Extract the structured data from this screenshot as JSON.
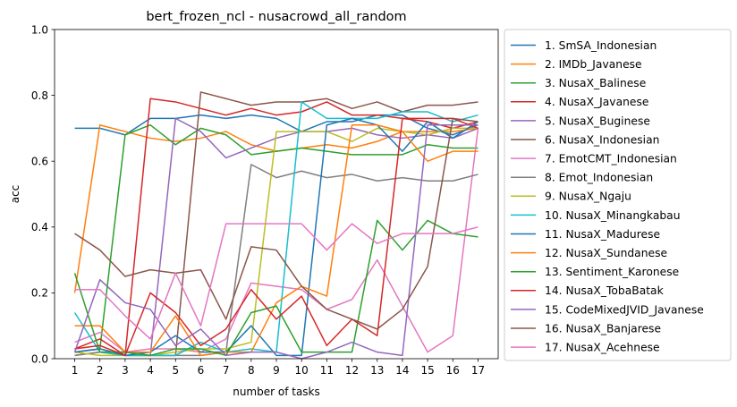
{
  "chart_data": {
    "type": "line",
    "title": "bert_frozen_ncl - nusacrowd_all_random",
    "xlabel": "number of tasks",
    "ylabel": "acc",
    "x": [
      1,
      2,
      3,
      4,
      5,
      6,
      7,
      8,
      9,
      10,
      11,
      12,
      13,
      14,
      15,
      16,
      17
    ],
    "xlim": [
      0.2,
      17.8
    ],
    "ylim": [
      0,
      1
    ],
    "yticks": [
      "0.0",
      "0.2",
      "0.4",
      "0.6",
      "0.8",
      "1.0"
    ],
    "grid": false,
    "legend_position": "outside-right",
    "series": [
      {
        "name": "1. SmSA_Indonesian",
        "color": "#1f77b4",
        "values": [
          0.7,
          0.7,
          0.68,
          0.73,
          0.73,
          0.74,
          0.73,
          0.74,
          0.73,
          0.69,
          0.72,
          0.72,
          0.74,
          0.74,
          0.7,
          0.68,
          0.71
        ]
      },
      {
        "name": "2. IMDb_Javanese",
        "color": "#ff7f0e",
        "values": [
          0.2,
          0.71,
          0.69,
          0.67,
          0.66,
          0.67,
          0.69,
          0.65,
          0.63,
          0.64,
          0.65,
          0.64,
          0.66,
          0.69,
          0.69,
          0.69,
          0.7
        ]
      },
      {
        "name": "3. NusaX_Balinese",
        "color": "#2ca02c",
        "values": [
          0.02,
          0.03,
          0.68,
          0.71,
          0.65,
          0.7,
          0.68,
          0.62,
          0.63,
          0.64,
          0.63,
          0.62,
          0.62,
          0.62,
          0.65,
          0.64,
          0.64
        ]
      },
      {
        "name": "4. NusaX_Javanese",
        "color": "#d62728",
        "values": [
          0.03,
          0.06,
          0.01,
          0.79,
          0.78,
          0.76,
          0.74,
          0.76,
          0.74,
          0.75,
          0.78,
          0.74,
          0.74,
          0.73,
          0.72,
          0.7,
          0.72
        ]
      },
      {
        "name": "5. NusaX_Buginese",
        "color": "#9467bd",
        "values": [
          0.02,
          0.03,
          0.01,
          0.01,
          0.73,
          0.69,
          0.61,
          0.64,
          0.67,
          0.69,
          0.69,
          0.7,
          0.68,
          0.67,
          0.68,
          0.67,
          0.7
        ]
      },
      {
        "name": "6. NusaX_Indonesian",
        "color": "#8c564b",
        "values": [
          0.01,
          0.02,
          0.02,
          0.01,
          0.01,
          0.81,
          0.79,
          0.77,
          0.78,
          0.78,
          0.79,
          0.76,
          0.78,
          0.75,
          0.77,
          0.77,
          0.78
        ]
      },
      {
        "name": "7. EmotCMT_Indonesian",
        "color": "#e377c2",
        "values": [
          0.05,
          0.08,
          0.02,
          0.03,
          0.03,
          0.02,
          0.06,
          0.23,
          0.22,
          0.21,
          0.15,
          0.18,
          0.3,
          0.16,
          0.02,
          0.07,
          0.7
        ]
      },
      {
        "name": "8. Emot_Indonesian",
        "color": "#7f7f7f",
        "values": [
          0.01,
          0.02,
          0.01,
          0.01,
          0.01,
          0.01,
          0.02,
          0.59,
          0.55,
          0.57,
          0.55,
          0.56,
          0.54,
          0.55,
          0.54,
          0.54,
          0.56
        ]
      },
      {
        "name": "9. NusaX_Ngaju",
        "color": "#bcbd22",
        "values": [
          0.02,
          0.01,
          0.01,
          0.01,
          0.02,
          0.03,
          0.03,
          0.05,
          0.69,
          0.69,
          0.69,
          0.66,
          0.7,
          0.69,
          0.68,
          0.7,
          0.7
        ]
      },
      {
        "name": "10. NusaX_Minangkabau",
        "color": "#17becf",
        "values": [
          0.14,
          0.02,
          0.01,
          0.01,
          0.01,
          0.05,
          0.02,
          0.03,
          0.02,
          0.78,
          0.73,
          0.73,
          0.73,
          0.75,
          0.75,
          0.72,
          0.74
        ]
      },
      {
        "name": "11. NusaX_Madurese",
        "color": "#1f77b4",
        "values": [
          0.02,
          0.03,
          0.01,
          0.02,
          0.07,
          0.02,
          0.02,
          0.1,
          0.01,
          0.01,
          0.71,
          0.73,
          0.71,
          0.63,
          0.72,
          0.67,
          0.72
        ]
      },
      {
        "name": "12. NusaX_Sundanese",
        "color": "#ff7f0e",
        "values": [
          0.1,
          0.1,
          0.02,
          0.02,
          0.13,
          0.01,
          0.02,
          0.02,
          0.17,
          0.22,
          0.19,
          0.71,
          0.71,
          0.69,
          0.6,
          0.63,
          0.63
        ]
      },
      {
        "name": "13. Sentiment_Karonese",
        "color": "#2ca02c",
        "values": [
          0.26,
          0.02,
          0.02,
          0.01,
          0.03,
          0.03,
          0.01,
          0.14,
          0.16,
          0.02,
          0.02,
          0.02,
          0.42,
          0.33,
          0.42,
          0.38,
          0.37
        ]
      },
      {
        "name": "14. NusaX_TobaBatak",
        "color": "#d62728",
        "values": [
          0.03,
          0.04,
          0.01,
          0.2,
          0.14,
          0.04,
          0.09,
          0.21,
          0.12,
          0.19,
          0.04,
          0.12,
          0.07,
          0.73,
          0.73,
          0.73,
          0.7
        ]
      },
      {
        "name": "15. CodeMixedJVID_Javanese",
        "color": "#9467bd",
        "values": [
          0.02,
          0.24,
          0.17,
          0.15,
          0.04,
          0.09,
          0.01,
          0.02,
          0.02,
          0.0,
          0.02,
          0.05,
          0.02,
          0.01,
          0.71,
          0.71,
          0.71
        ]
      },
      {
        "name": "16. NusaX_Banjarese",
        "color": "#8c564b",
        "values": [
          0.38,
          0.33,
          0.25,
          0.27,
          0.26,
          0.27,
          0.12,
          0.34,
          0.33,
          0.22,
          0.15,
          0.12,
          0.09,
          0.15,
          0.28,
          0.73,
          0.72
        ]
      },
      {
        "name": "17. NusaX_Acehnese",
        "color": "#e377c2",
        "values": [
          0.21,
          0.21,
          0.13,
          0.06,
          0.26,
          0.1,
          0.41,
          0.41,
          0.41,
          0.41,
          0.33,
          0.41,
          0.35,
          0.38,
          0.38,
          0.38,
          0.4
        ]
      }
    ]
  }
}
